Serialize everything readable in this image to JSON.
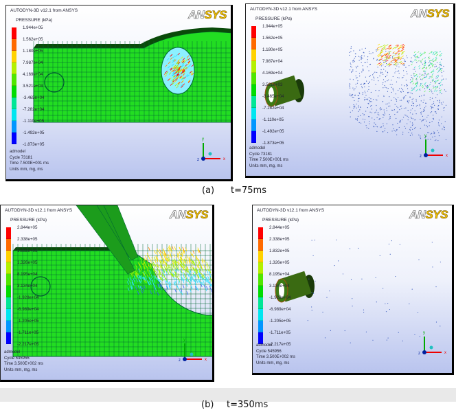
{
  "panels": [
    {
      "id": "a-left",
      "title": "AUTODYN-3D v12.1 from ANSYS",
      "legend_title": "PRESSURE (kPa)",
      "logo": "ANSYS",
      "legend": [
        "1.944e+05",
        "1.562e+05",
        "1.180e+05",
        "7.987e+04",
        "4.169e+04",
        "3.521e+03",
        "-3.465e+04",
        "-7.282e+04",
        "-1.110e+05",
        "-1.492e+05",
        "-1.873e+05"
      ],
      "info": [
        "admodel",
        "Cycle 73181",
        "Time 7.500E+001 ms",
        "Units mm, mg, ms"
      ],
      "scene": "plate-hole"
    },
    {
      "id": "a-right",
      "title": "AUTODYN-3D v12.1 from ANSYS",
      "legend_title": "PRESSURE (kPa)",
      "logo": "ANSYS",
      "legend": [
        "1.944e+05",
        "1.562e+05",
        "1.180e+05",
        "7.987e+04",
        "4.169e+04",
        "3.521e+03",
        "-3.465e+04",
        "-7.282e+04",
        "-1.110e+05",
        "-1.492e+05",
        "-1.873e+05"
      ],
      "info": [
        "admodel",
        "Cycle 73181",
        "Time 7.500E+001 ms",
        "Units mm, mg, ms"
      ],
      "scene": "cylinder-particles"
    },
    {
      "id": "b-left",
      "title": "AUTODYN-3D v12.1 from ANSYS",
      "legend_title": "PRESSURE (kPa)",
      "logo": "ANSYS",
      "legend": [
        "2.844e+05",
        "2.338e+05",
        "1.832e+05",
        "1.326e+05",
        "8.195e+04",
        "3.134e+04",
        "-1.928e+04",
        "-6.989e+04",
        "-1.205e+05",
        "-1.711e+05",
        "-2.217e+05"
      ],
      "info": [
        "admodel",
        "Cycle 545956",
        "Time 3.500E+002 ms",
        "Units mm, mg, ms"
      ],
      "scene": "plate-dome"
    },
    {
      "id": "b-right",
      "title": "AUTODYN-3D v12.1 from ANSYS",
      "legend_title": "PRESSURE (kPa)",
      "logo": "ANSYS",
      "legend": [
        "2.844e+05",
        "2.338e+05",
        "1.832e+05",
        "1.326e+05",
        "8.195e+04",
        "3.134e+04",
        "-1.928e+04",
        "-6.989e+04",
        "-1.205e+05",
        "-1.711e+05",
        "-2.217e+05"
      ],
      "info": [
        "admodel",
        "Cycle 545956",
        "Time 3.500E+002 ms",
        "Units mm, mg, ms"
      ],
      "scene": "cylinder-sparse"
    }
  ],
  "legend_colors": [
    "#ff0000",
    "#ff6a00",
    "#ffd200",
    "#b4f000",
    "#50e600",
    "#00dc00",
    "#00e696",
    "#00e6f0",
    "#0096ff",
    "#0000ff"
  ],
  "axes": {
    "x": "x",
    "y": "y",
    "z": "z"
  },
  "captions": {
    "a_label": "(a)",
    "a_time": "t=75ms",
    "b_label": "(b)",
    "b_time": "t=350ms"
  }
}
